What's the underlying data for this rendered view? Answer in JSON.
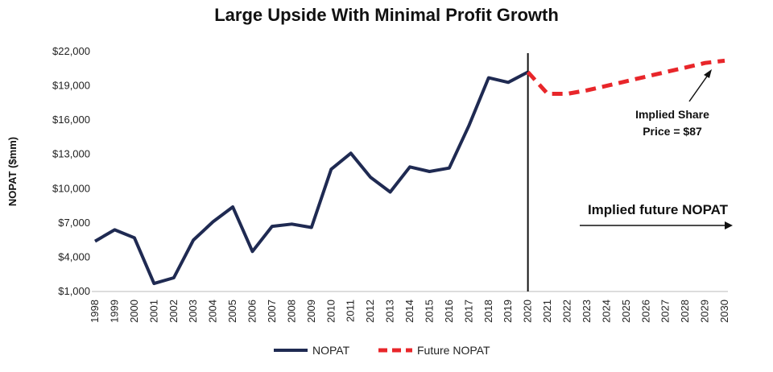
{
  "chart_data": {
    "type": "line",
    "title": "Large Upside With Minimal Profit Growth",
    "ylabel": "NOPAT ($mm)",
    "xlabel": "",
    "ylim": [
      1000,
      22000
    ],
    "yticks": [
      "$1,000",
      "$4,000",
      "$7,000",
      "$10,000",
      "$13,000",
      "$16,000",
      "$19,000",
      "$22,000"
    ],
    "ytick_values": [
      1000,
      4000,
      7000,
      10000,
      13000,
      16000,
      19000,
      22000
    ],
    "categories": [
      "1998",
      "1999",
      "2000",
      "2001",
      "2002",
      "2003",
      "2004",
      "2005",
      "2006",
      "2007",
      "2008",
      "2009",
      "2010",
      "2011",
      "2012",
      "2013",
      "2014",
      "2015",
      "2016",
      "2017",
      "2018",
      "2019",
      "2020",
      "2021",
      "2022",
      "2023",
      "2024",
      "2025",
      "2026",
      "2027",
      "2028",
      "2029",
      "2030"
    ],
    "series": [
      {
        "name": "NOPAT",
        "color": "#1f2a52",
        "style": "solid",
        "points": [
          [
            "1998",
            5400
          ],
          [
            "1999",
            6400
          ],
          [
            "2000",
            5700
          ],
          [
            "2001",
            1700
          ],
          [
            "2002",
            2200
          ],
          [
            "2003",
            5500
          ],
          [
            "2004",
            7100
          ],
          [
            "2005",
            8400
          ],
          [
            "2006",
            4500
          ],
          [
            "2007",
            6700
          ],
          [
            "2008",
            6900
          ],
          [
            "2009",
            6600
          ],
          [
            "2010",
            11700
          ],
          [
            "2011",
            13100
          ],
          [
            "2012",
            11000
          ],
          [
            "2013",
            9700
          ],
          [
            "2014",
            11900
          ],
          [
            "2015",
            11500
          ],
          [
            "2016",
            11800
          ],
          [
            "2017",
            15500
          ],
          [
            "2018",
            19700
          ],
          [
            "2019",
            19300
          ],
          [
            "2020",
            20200
          ]
        ]
      },
      {
        "name": "Future NOPAT",
        "color": "#e8262a",
        "style": "dashed",
        "points": [
          [
            "2020",
            20200
          ],
          [
            "2021",
            18300
          ],
          [
            "2022",
            18300
          ],
          [
            "2023",
            18600
          ],
          [
            "2024",
            19000
          ],
          [
            "2025",
            19400
          ],
          [
            "2026",
            19800
          ],
          [
            "2027",
            20200
          ],
          [
            "2028",
            20600
          ],
          [
            "2029",
            21000
          ],
          [
            "2030",
            21200
          ]
        ]
      }
    ],
    "vline_at": "2020",
    "annotations": {
      "share_price_line1": "Implied Share",
      "share_price_line2": "Price = $87",
      "future_label": "Implied future NOPAT"
    },
    "legend_position": "bottom",
    "grid": false
  }
}
